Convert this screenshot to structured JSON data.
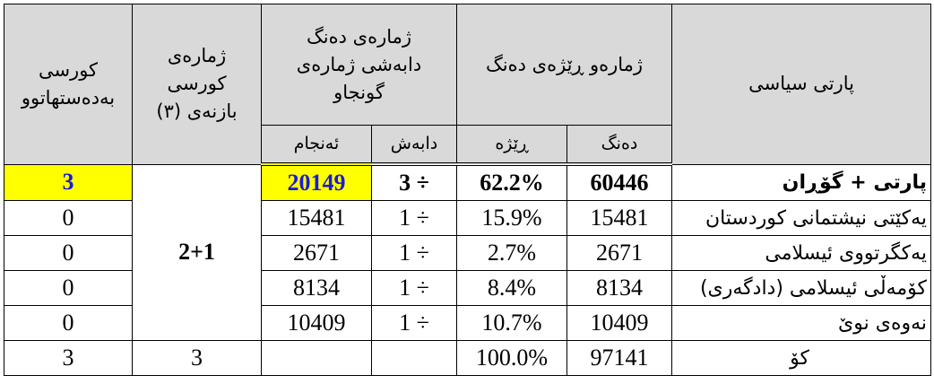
{
  "header": {
    "seats_won": "کورسی بەدەستهاتوو",
    "bonus_seats": "ژمارەی کورسی بازنەی (٣)",
    "divided_votes": "ژمارەی دەنگ دابەشی ژمارەی گونجاو",
    "result": "ئەنجام",
    "divide": "دابەش",
    "votes_and_percent": "ژمارەو ڕێژەی دەنگ",
    "percent": "ڕێژە",
    "votes": "دەنگ",
    "party": "پارتی سیاسی"
  },
  "bonus_seats_value": "2+1",
  "rows": [
    {
      "seats": "3",
      "result": "20149",
      "divide": "3 ÷",
      "percent": "62.2%",
      "votes": "60446",
      "party": "پارتی + گۆڕان"
    },
    {
      "seats": "0",
      "result": "15481",
      "divide": "1 ÷",
      "percent": "15.9%",
      "votes": "15481",
      "party": "یەکێتی نیشتمانی کوردستان"
    },
    {
      "seats": "0",
      "result": "2671",
      "divide": "1 ÷",
      "percent": "2.7%",
      "votes": "2671",
      "party": "یەکگرتووی ئیسلامی"
    },
    {
      "seats": "0",
      "result": "8134",
      "divide": "1 ÷",
      "percent": "8.4%",
      "votes": "8134",
      "party": "کۆمەڵی ئیسلامی (دادگەری)"
    },
    {
      "seats": "0",
      "result": "10409",
      "divide": "1 ÷",
      "percent": "10.7%",
      "votes": "10409",
      "party": "نەوەی نوێ"
    }
  ],
  "total": {
    "seats": "3",
    "bonus": "3",
    "result": "",
    "divide": "",
    "percent": "100.0%",
    "votes": "97141",
    "party": "کۆ"
  },
  "colors": {
    "highlight": "#ffff00",
    "highlight_text": "#1a1adb",
    "header_bg": "#d9d9d9"
  }
}
